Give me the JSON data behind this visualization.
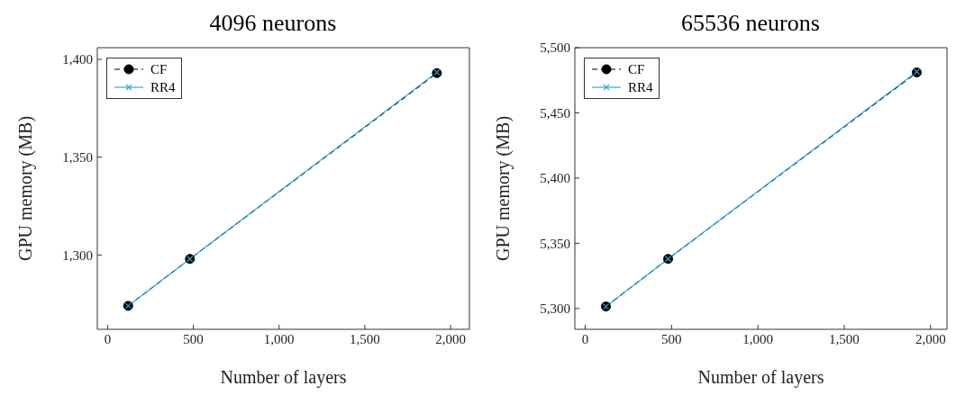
{
  "chart_data": [
    {
      "type": "line",
      "title": "4096 neurons",
      "xlabel": "Number of layers",
      "ylabel": "GPU memory (MB)",
      "x": [
        120,
        480,
        1920
      ],
      "series": [
        {
          "name": "CF",
          "color": "#000000",
          "values": [
            1274,
            1298,
            1393
          ],
          "marker": "circle",
          "line_style": "dashed"
        },
        {
          "name": "RR4",
          "color": "#2ea8d8",
          "values": [
            1274,
            1298,
            1393.4
          ],
          "marker": "cross",
          "line_style": "solid"
        }
      ],
      "xlim": [
        -60,
        2110
      ],
      "xticks": [
        {
          "value": 0,
          "label": "0"
        },
        {
          "value": 500,
          "label": "500"
        },
        {
          "value": 1000,
          "label": "1,000"
        },
        {
          "value": 1500,
          "label": "1,500"
        },
        {
          "value": 2000,
          "label": "2,000"
        }
      ],
      "ylim": [
        1262,
        1406
      ],
      "yticks": [
        {
          "value": 1300,
          "label": "1,300"
        },
        {
          "value": 1350,
          "label": "1,350"
        },
        {
          "value": 1400,
          "label": "1,400"
        }
      ],
      "grid": false,
      "legend": "top left"
    },
    {
      "type": "line",
      "title": "65536 neurons",
      "xlabel": "Number of layers",
      "ylabel": "GPU memory (MB)",
      "x": [
        120,
        480,
        1920
      ],
      "series": [
        {
          "name": "CF",
          "color": "#000000",
          "values": [
            5301.5,
            5338,
            5481
          ],
          "marker": "circle",
          "line_style": "dashed"
        },
        {
          "name": "RR4",
          "color": "#2ea8d8",
          "values": [
            5301.5,
            5338,
            5481.5
          ],
          "marker": "cross",
          "line_style": "solid"
        }
      ],
      "xlim": [
        -60,
        2095
      ],
      "xticks": [
        {
          "value": 0,
          "label": "0"
        },
        {
          "value": 500,
          "label": "500"
        },
        {
          "value": 1000,
          "label": "1,000"
        },
        {
          "value": 1500,
          "label": "1,500"
        },
        {
          "value": 2000,
          "label": "2,000"
        }
      ],
      "ylim": [
        5284,
        5500
      ],
      "yticks": [
        {
          "value": 5300,
          "label": "5,300"
        },
        {
          "value": 5350,
          "label": "5,350"
        },
        {
          "value": 5400,
          "label": "5,400"
        },
        {
          "value": 5450,
          "label": "5,450"
        },
        {
          "value": 5500,
          "label": "5,500"
        }
      ],
      "grid": false,
      "legend": "top left"
    }
  ]
}
